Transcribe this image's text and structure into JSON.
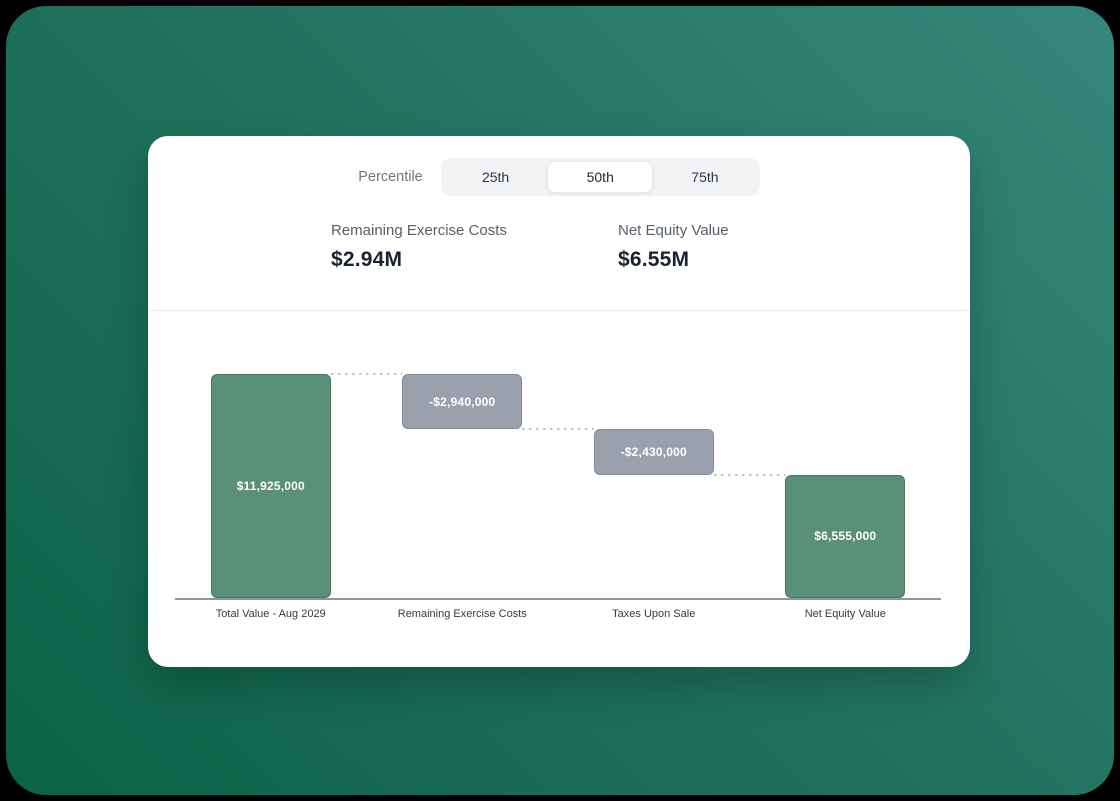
{
  "controls": {
    "percentile_label": "Percentile",
    "percentile_options": [
      {
        "label": "25th",
        "selected": false
      },
      {
        "label": "50th",
        "selected": true
      },
      {
        "label": "75th",
        "selected": false
      }
    ]
  },
  "stats": [
    {
      "label": "Remaining Exercise Costs",
      "value": "$2.94M"
    },
    {
      "label": "Net Equity Value",
      "value": "$6.55M"
    }
  ],
  "chart_data": {
    "type": "waterfall",
    "categories": [
      "Total Value - Aug 2029",
      "Remaining Exercise Costs",
      "Taxes Upon Sale",
      "Net Equity Value"
    ],
    "steps": [
      {
        "label": "Total Value - Aug 2029",
        "value": 11925000,
        "display": "$11,925,000",
        "kind": "total"
      },
      {
        "label": "Remaining Exercise Costs",
        "value": -2940000,
        "display": "-$2,940,000",
        "kind": "delta"
      },
      {
        "label": "Taxes Upon Sale",
        "value": -2430000,
        "display": "-$2,430,000",
        "kind": "delta"
      },
      {
        "label": "Net Equity Value",
        "value": 6555000,
        "display": "$6,555,000",
        "kind": "total"
      }
    ],
    "ylim": [
      0,
      11925000
    ],
    "grid": false,
    "legend": false,
    "colors": {
      "positive_bar": "#5A8F78",
      "negative_bar": "#9AA1AD",
      "connector": "#BFC3C9",
      "axis_line": "#8F959C"
    }
  },
  "theme": {
    "background_gradient": [
      "#0B6347",
      "#1E705A",
      "#35877A"
    ],
    "card_background": "#FFFFFF"
  }
}
